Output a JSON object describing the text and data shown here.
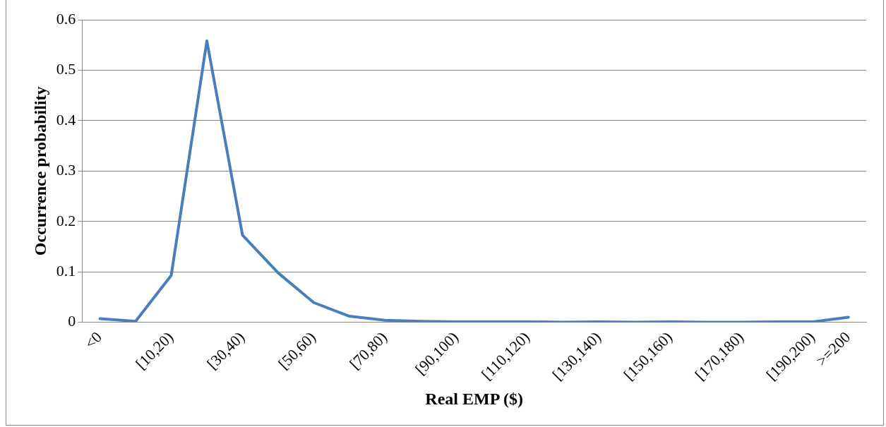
{
  "chart_data": {
    "type": "line",
    "xlabel": "Real EMP ($)",
    "ylabel": "Occurrence probability",
    "categories": [
      "<0",
      null,
      "[10,20)",
      null,
      "[30,40)",
      null,
      "[50,60)",
      null,
      "[70,80)",
      null,
      "[90,100)",
      null,
      "[110,120)",
      null,
      "[130,140)",
      null,
      "[150,160)",
      null,
      "[170,180)",
      null,
      "[190,200)",
      ">=200"
    ],
    "series": [
      {
        "color": "#4a7ebb",
        "values": [
          0.007,
          0.002,
          0.093,
          0.558,
          0.173,
          0.098,
          0.039,
          0.012,
          0.004,
          0.002,
          0.001,
          0.001,
          0.001,
          0.0,
          0.001,
          0.0,
          0.001,
          0.0,
          0.0,
          0.001,
          0.001,
          0.01
        ]
      }
    ],
    "ylim": [
      0,
      0.6
    ],
    "yticks": [
      0,
      0.1,
      0.2,
      0.3,
      0.4,
      0.5,
      0.6
    ],
    "grid": "y",
    "legend": false,
    "marker": "none",
    "line_style": "solid"
  }
}
